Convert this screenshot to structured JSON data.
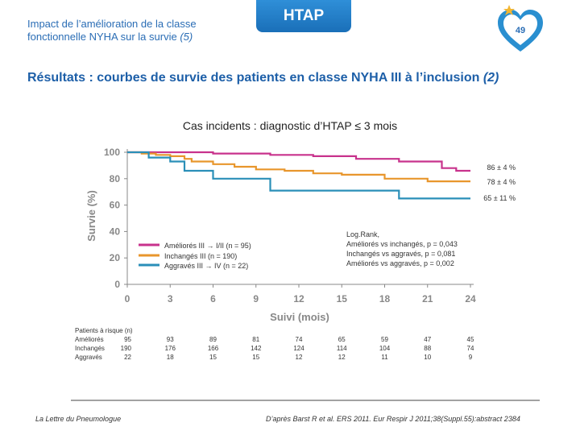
{
  "header": {
    "title_line1": "Impact de l’amélioration de la classe",
    "title_line2": "fonctionnelle NYHA sur la survie ",
    "title_ref": "(5)",
    "tab": "HTAP",
    "page_number": "49"
  },
  "section_title": "Résultats : courbes de survie des patients en classe NYHA III à l’inclusion ",
  "section_ref": "(2)",
  "chart_title": "Cas incidents : diagnostic d’HTAP ≤ 3 mois",
  "colors": {
    "improved": "#c8328c",
    "unchanged": "#e8962c",
    "worsened": "#2a8fb8",
    "brand": "#2a6db5"
  },
  "chart_data": {
    "type": "line",
    "xlabel": "Suivi (mois)",
    "ylabel": "Survie (%)",
    "xlim": [
      0,
      24
    ],
    "ylim": [
      0,
      100
    ],
    "x_ticks": [
      0,
      3,
      6,
      9,
      12,
      15,
      18,
      21,
      24
    ],
    "y_ticks": [
      0,
      20,
      40,
      60,
      80,
      100
    ],
    "series": [
      {
        "name": "Améliorés III → I/II (n = 95)",
        "color_key": "improved",
        "end_label": "86 ± 4 %",
        "points": [
          [
            0,
            100
          ],
          [
            6,
            100
          ],
          [
            6,
            99
          ],
          [
            10,
            99
          ],
          [
            10,
            98
          ],
          [
            13,
            98
          ],
          [
            13,
            97
          ],
          [
            16,
            97
          ],
          [
            16,
            95
          ],
          [
            19,
            95
          ],
          [
            19,
            93
          ],
          [
            22,
            93
          ],
          [
            22,
            88
          ],
          [
            23,
            88
          ],
          [
            23,
            86
          ],
          [
            24,
            86
          ]
        ]
      },
      {
        "name": "Inchangés III (n = 190)",
        "color_key": "unchanged",
        "end_label": "78 ± 4 %",
        "points": [
          [
            0,
            100
          ],
          [
            1,
            100
          ],
          [
            1,
            99
          ],
          [
            2,
            99
          ],
          [
            2,
            98
          ],
          [
            3,
            98
          ],
          [
            3,
            97
          ],
          [
            4,
            97
          ],
          [
            4,
            95
          ],
          [
            4.5,
            95
          ],
          [
            4.5,
            93
          ],
          [
            6,
            93
          ],
          [
            6,
            91
          ],
          [
            7.5,
            91
          ],
          [
            7.5,
            89
          ],
          [
            9,
            89
          ],
          [
            9,
            87
          ],
          [
            11,
            87
          ],
          [
            11,
            86
          ],
          [
            13,
            86
          ],
          [
            13,
            84
          ],
          [
            15,
            84
          ],
          [
            15,
            83
          ],
          [
            18,
            83
          ],
          [
            18,
            80
          ],
          [
            21,
            80
          ],
          [
            21,
            78
          ],
          [
            24,
            78
          ]
        ]
      },
      {
        "name": "Aggravés III → IV (n = 22)",
        "color_key": "worsened",
        "end_label": "65 ± 11 %",
        "points": [
          [
            0,
            100
          ],
          [
            1.5,
            100
          ],
          [
            1.5,
            96
          ],
          [
            3,
            96
          ],
          [
            3,
            93
          ],
          [
            4,
            93
          ],
          [
            4,
            86
          ],
          [
            6,
            86
          ],
          [
            6,
            80
          ],
          [
            10,
            80
          ],
          [
            10,
            71
          ],
          [
            19,
            71
          ],
          [
            19,
            65
          ],
          [
            24,
            65
          ]
        ]
      }
    ],
    "annotation": {
      "line1": "Log.Rank,",
      "line2": "Améliorés vs inchangés, p = 0,043",
      "line3": "Inchangés vs aggravés, p = 0,081",
      "line4": "Améliorés vs aggravés, p = 0,002"
    },
    "risk_table": {
      "title": "Patients à risque (n)",
      "rows": [
        {
          "label": "Améliorés",
          "values": [
            "95",
            "93",
            "89",
            "81",
            "74",
            "65",
            "59",
            "47",
            "45"
          ]
        },
        {
          "label": "Inchangés",
          "values": [
            "190",
            "176",
            "166",
            "142",
            "124",
            "114",
            "104",
            "88",
            "74"
          ]
        },
        {
          "label": "Aggravés",
          "values": [
            "22",
            "18",
            "15",
            "15",
            "12",
            "12",
            "11",
            "10",
            "9"
          ]
        }
      ]
    }
  },
  "footer": {
    "left": "La Lettre du Pneumologue",
    "right": "D’après Barst R et al. ERS 2011. Eur Respir J 2011;38(Suppl.55):abstract 2384"
  }
}
